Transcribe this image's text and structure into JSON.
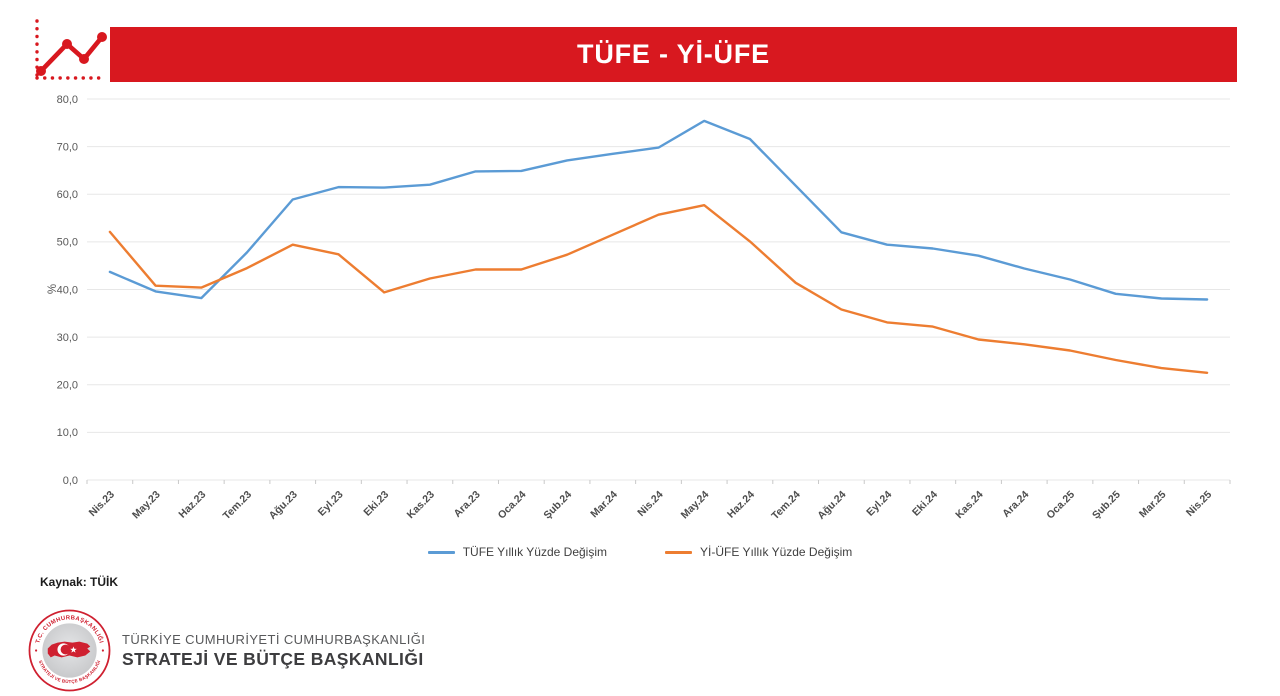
{
  "header": {
    "title": "TÜFE - Yİ-ÜFE"
  },
  "source": {
    "label": "Kaynak: TÜİK"
  },
  "footer": {
    "org_line1": "TÜRKİYE CUMHURİYETİ CUMHURBAŞKANLIĞI",
    "org_line2": "STRATEJİ VE BÜTÇE BAŞKANLIĞI",
    "logo_ring_text_top": "T.C. CUMHURBAŞKANLIĞI",
    "logo_ring_text_bottom": "STRATEJİ VE BÜTÇE BAŞKANLIĞI"
  },
  "colors": {
    "banner_red": "#D8181F",
    "tufe_blue": "#5B9BD5",
    "yiufe_orange": "#ED7D31",
    "grid": "#E7E7E7",
    "axis_text": "#595959",
    "xlabel_text": "#4D4D4D"
  },
  "chart_data": {
    "type": "line",
    "title": "TÜFE - Yİ-ÜFE",
    "xlabel": "",
    "ylabel": "%",
    "ylim": [
      0,
      80
    ],
    "ytick_step": 10,
    "ytick_labels": [
      "0,0",
      "10,0",
      "20,0",
      "30,0",
      "40,0",
      "50,0",
      "60,0",
      "70,0",
      "80,0"
    ],
    "grid": true,
    "legend_position": "bottom",
    "categories": [
      "Nis.23",
      "May.23",
      "Haz.23",
      "Tem.23",
      "Ağu.23",
      "Eyl.23",
      "Eki.23",
      "Kas.23",
      "Ara.23",
      "Oca.24",
      "Şub.24",
      "Mar.24",
      "Nis.24",
      "May.24",
      "Haz.24",
      "Tem.24",
      "Ağu.24",
      "Eyl.24",
      "Eki.24",
      "Kas.24",
      "Ara.24",
      "Oca.25",
      "Şub.25",
      "Mar.25",
      "Nis.25"
    ],
    "series": [
      {
        "name": "TÜFE Yıllık Yüzde Değişim",
        "color": "#5B9BD5",
        "values": [
          43.7,
          39.6,
          38.2,
          47.8,
          58.9,
          61.5,
          61.4,
          62.0,
          64.8,
          64.9,
          67.1,
          68.5,
          69.8,
          75.4,
          71.6,
          61.8,
          52.0,
          49.4,
          48.6,
          47.1,
          44.4,
          42.1,
          39.1,
          38.1,
          37.9
        ]
      },
      {
        "name": "Yİ-ÜFE Yıllık Yüzde Değişim",
        "color": "#ED7D31",
        "values": [
          52.1,
          40.8,
          40.4,
          44.5,
          49.4,
          47.4,
          39.4,
          42.3,
          44.2,
          44.2,
          47.3,
          51.5,
          55.7,
          57.7,
          50.1,
          41.4,
          35.8,
          33.1,
          32.2,
          29.5,
          28.5,
          27.2,
          25.2,
          23.5,
          22.5
        ]
      }
    ]
  }
}
